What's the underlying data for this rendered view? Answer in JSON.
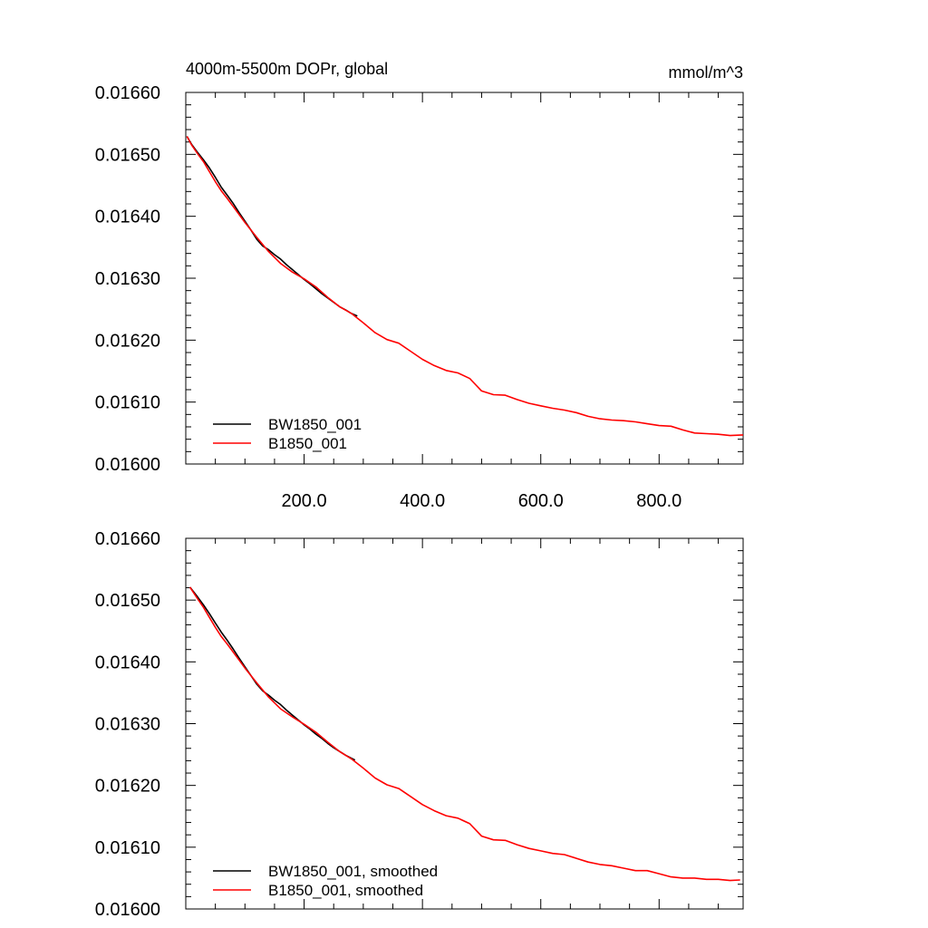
{
  "figure": {
    "title": "4000m-5500m DOPr, global",
    "units": "mmol/m^3"
  },
  "chart_data": [
    {
      "type": "line",
      "title": "4000m-5500m DOPr, global",
      "units_label": "mmol/m^3",
      "xlabel": "",
      "ylabel": "",
      "xlim": [
        0,
        942
      ],
      "ylim": [
        0.016,
        0.0166
      ],
      "x_ticks": [
        200,
        400,
        600,
        800
      ],
      "x_tick_labels": [
        "200.0",
        "400.0",
        "600.0",
        "800.0"
      ],
      "y_ticks": [
        0.016,
        0.0161,
        0.0162,
        0.0163,
        0.0164,
        0.0165,
        0.0166
      ],
      "y_tick_labels": [
        "0.01600",
        "0.01610",
        "0.01620",
        "0.01630",
        "0.01640",
        "0.01650",
        "0.01660"
      ],
      "grid": false,
      "legend": "bottom-left",
      "series": [
        {
          "name": "BW1850_001",
          "color": "#000000",
          "x": [
            2,
            10,
            20,
            30,
            40,
            50,
            60,
            70,
            80,
            90,
            100,
            110,
            120,
            130,
            140,
            150,
            160,
            170,
            180,
            190,
            200,
            210,
            220,
            230,
            240,
            250,
            260,
            270,
            280,
            290
          ],
          "y": [
            0.016529,
            0.016516,
            0.016503,
            0.016491,
            0.016478,
            0.016463,
            0.016447,
            0.016434,
            0.016421,
            0.016406,
            0.016392,
            0.016378,
            0.016363,
            0.016352,
            0.016346,
            0.016338,
            0.016331,
            0.016322,
            0.016314,
            0.016306,
            0.016298,
            0.016291,
            0.016283,
            0.016275,
            0.016268,
            0.016261,
            0.016254,
            0.016249,
            0.016243,
            0.016239
          ]
        },
        {
          "name": "B1850_001",
          "color": "#ff0000",
          "x": [
            2,
            10,
            20,
            30,
            40,
            50,
            60,
            70,
            80,
            90,
            100,
            120,
            140,
            160,
            180,
            200,
            220,
            240,
            260,
            280,
            300,
            320,
            340,
            360,
            380,
            400,
            420,
            440,
            460,
            480,
            500,
            520,
            540,
            560,
            580,
            600,
            620,
            640,
            660,
            680,
            700,
            720,
            740,
            760,
            780,
            800,
            820,
            840,
            860,
            880,
            900,
            920,
            942
          ],
          "y": [
            0.016529,
            0.016515,
            0.016501,
            0.016488,
            0.016472,
            0.016456,
            0.016441,
            0.016429,
            0.016416,
            0.016403,
            0.01639,
            0.016366,
            0.016343,
            0.016324,
            0.01631,
            0.016299,
            0.016286,
            0.016269,
            0.016254,
            0.016243,
            0.016228,
            0.016212,
            0.016201,
            0.016195,
            0.016182,
            0.016169,
            0.016159,
            0.016151,
            0.016147,
            0.016138,
            0.016118,
            0.016112,
            0.016111,
            0.016104,
            0.016098,
            0.016094,
            0.01609,
            0.016087,
            0.016083,
            0.016077,
            0.016073,
            0.016071,
            0.01607,
            0.016068,
            0.016065,
            0.016062,
            0.016061,
            0.016055,
            0.01605,
            0.016049,
            0.016048,
            0.016046,
            0.016047
          ]
        }
      ]
    },
    {
      "type": "line",
      "title": "",
      "xlabel": "",
      "ylabel": "",
      "xlim": [
        0,
        942
      ],
      "ylim": [
        0.016,
        0.0166
      ],
      "x_ticks": [
        200,
        400,
        600,
        800
      ],
      "x_tick_labels": [],
      "y_ticks": [
        0.016,
        0.0161,
        0.0162,
        0.0163,
        0.0164,
        0.0165,
        0.0166
      ],
      "y_tick_labels": [
        "0.01600",
        "0.01610",
        "0.01620",
        "0.01630",
        "0.01640",
        "0.01650",
        "0.01660"
      ],
      "grid": false,
      "legend": "bottom-left",
      "series": [
        {
          "name": "BW1850_001, smoothed",
          "color": "#000000",
          "x": [
            7,
            20,
            30,
            40,
            50,
            60,
            70,
            80,
            90,
            100,
            110,
            120,
            130,
            140,
            150,
            160,
            170,
            180,
            190,
            200,
            210,
            220,
            230,
            240,
            250,
            260,
            270,
            286
          ],
          "y": [
            0.016521,
            0.016505,
            0.016492,
            0.016478,
            0.016463,
            0.016448,
            0.016435,
            0.016421,
            0.016406,
            0.016392,
            0.016378,
            0.016364,
            0.016353,
            0.016346,
            0.016338,
            0.016331,
            0.016322,
            0.016314,
            0.016306,
            0.016298,
            0.016291,
            0.016283,
            0.016276,
            0.016268,
            0.016261,
            0.016255,
            0.016249,
            0.016241
          ]
        },
        {
          "name": "B1850_001, smoothed",
          "color": "#ff0000",
          "x": [
            7,
            20,
            30,
            40,
            50,
            60,
            70,
            80,
            90,
            100,
            120,
            140,
            160,
            180,
            200,
            220,
            240,
            260,
            280,
            300,
            320,
            340,
            360,
            380,
            400,
            420,
            440,
            460,
            480,
            500,
            520,
            540,
            560,
            580,
            600,
            620,
            640,
            660,
            680,
            700,
            720,
            740,
            760,
            780,
            800,
            820,
            840,
            860,
            880,
            900,
            920,
            937
          ],
          "y": [
            0.016521,
            0.016502,
            0.016488,
            0.016472,
            0.016456,
            0.016441,
            0.016429,
            0.016416,
            0.016403,
            0.01639,
            0.016366,
            0.016343,
            0.016324,
            0.016311,
            0.016299,
            0.016286,
            0.01627,
            0.016255,
            0.016243,
            0.016228,
            0.016212,
            0.016201,
            0.016195,
            0.016182,
            0.016169,
            0.016159,
            0.016151,
            0.016147,
            0.016138,
            0.016118,
            0.016112,
            0.016111,
            0.016104,
            0.016098,
            0.016094,
            0.01609,
            0.016088,
            0.016082,
            0.016076,
            0.016072,
            0.01607,
            0.016066,
            0.016062,
            0.016062,
            0.016057,
            0.016052,
            0.01605,
            0.01605,
            0.016048,
            0.016048,
            0.016046,
            0.016047
          ]
        }
      ]
    }
  ]
}
